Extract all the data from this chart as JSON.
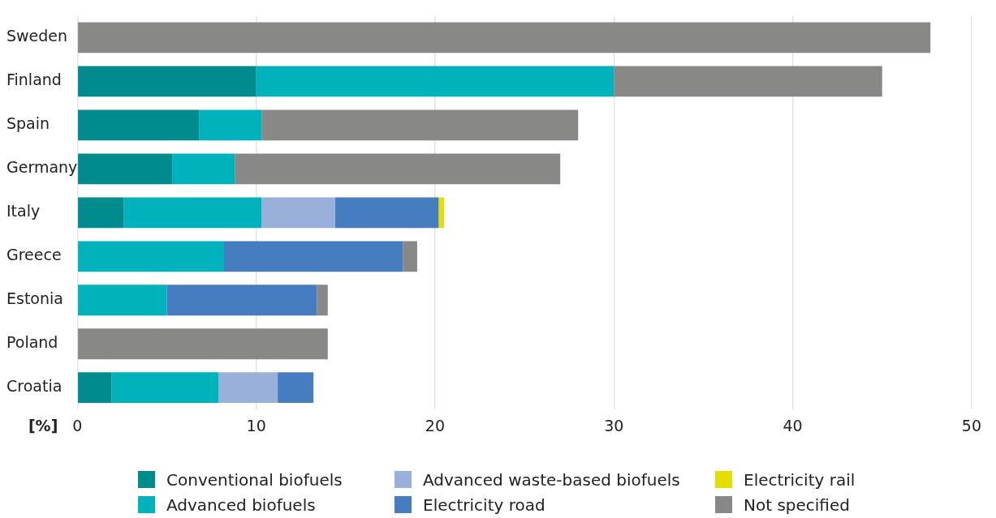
{
  "chart_data": {
    "type": "bar",
    "orientation": "horizontal",
    "stacked": true,
    "xlabel": "[%]",
    "categories": [
      "Sweden",
      "Finland",
      "Spain",
      "Germany",
      "Italy",
      "Greece",
      "Estonia",
      "Poland",
      "Croatia"
    ],
    "series": [
      {
        "name": "Conventional biofuels",
        "color": "#008b8f",
        "values": [
          null,
          10.0,
          6.8,
          5.3,
          2.6,
          null,
          null,
          null,
          1.9
        ]
      },
      {
        "name": "Advanced biofuels",
        "color": "#00b2bc",
        "values": [
          null,
          20.0,
          3.5,
          3.5,
          7.7,
          8.2,
          5.0,
          null,
          6.0
        ]
      },
      {
        "name": "Advanced waste-based biofuels",
        "color": "#99b0da",
        "values": [
          null,
          null,
          null,
          null,
          4.1,
          null,
          null,
          null,
          3.3
        ]
      },
      {
        "name": "Electricity road",
        "color": "#467dc0",
        "values": [
          null,
          null,
          null,
          null,
          5.8,
          10.0,
          8.4,
          null,
          2.0
        ]
      },
      {
        "name": "Electricity rail",
        "color": "#e5df00",
        "values": [
          null,
          null,
          null,
          null,
          0.3,
          null,
          null,
          null,
          null
        ]
      },
      {
        "name": "Not specified",
        "color": "#888886",
        "values": [
          47.7,
          15.0,
          17.7,
          18.2,
          null,
          0.8,
          0.6,
          14.0,
          null
        ]
      }
    ],
    "xlim": [
      0,
      50
    ],
    "xticks": [
      0,
      10,
      20,
      30,
      40,
      50
    ],
    "grid": "x",
    "legend": "bottom"
  }
}
